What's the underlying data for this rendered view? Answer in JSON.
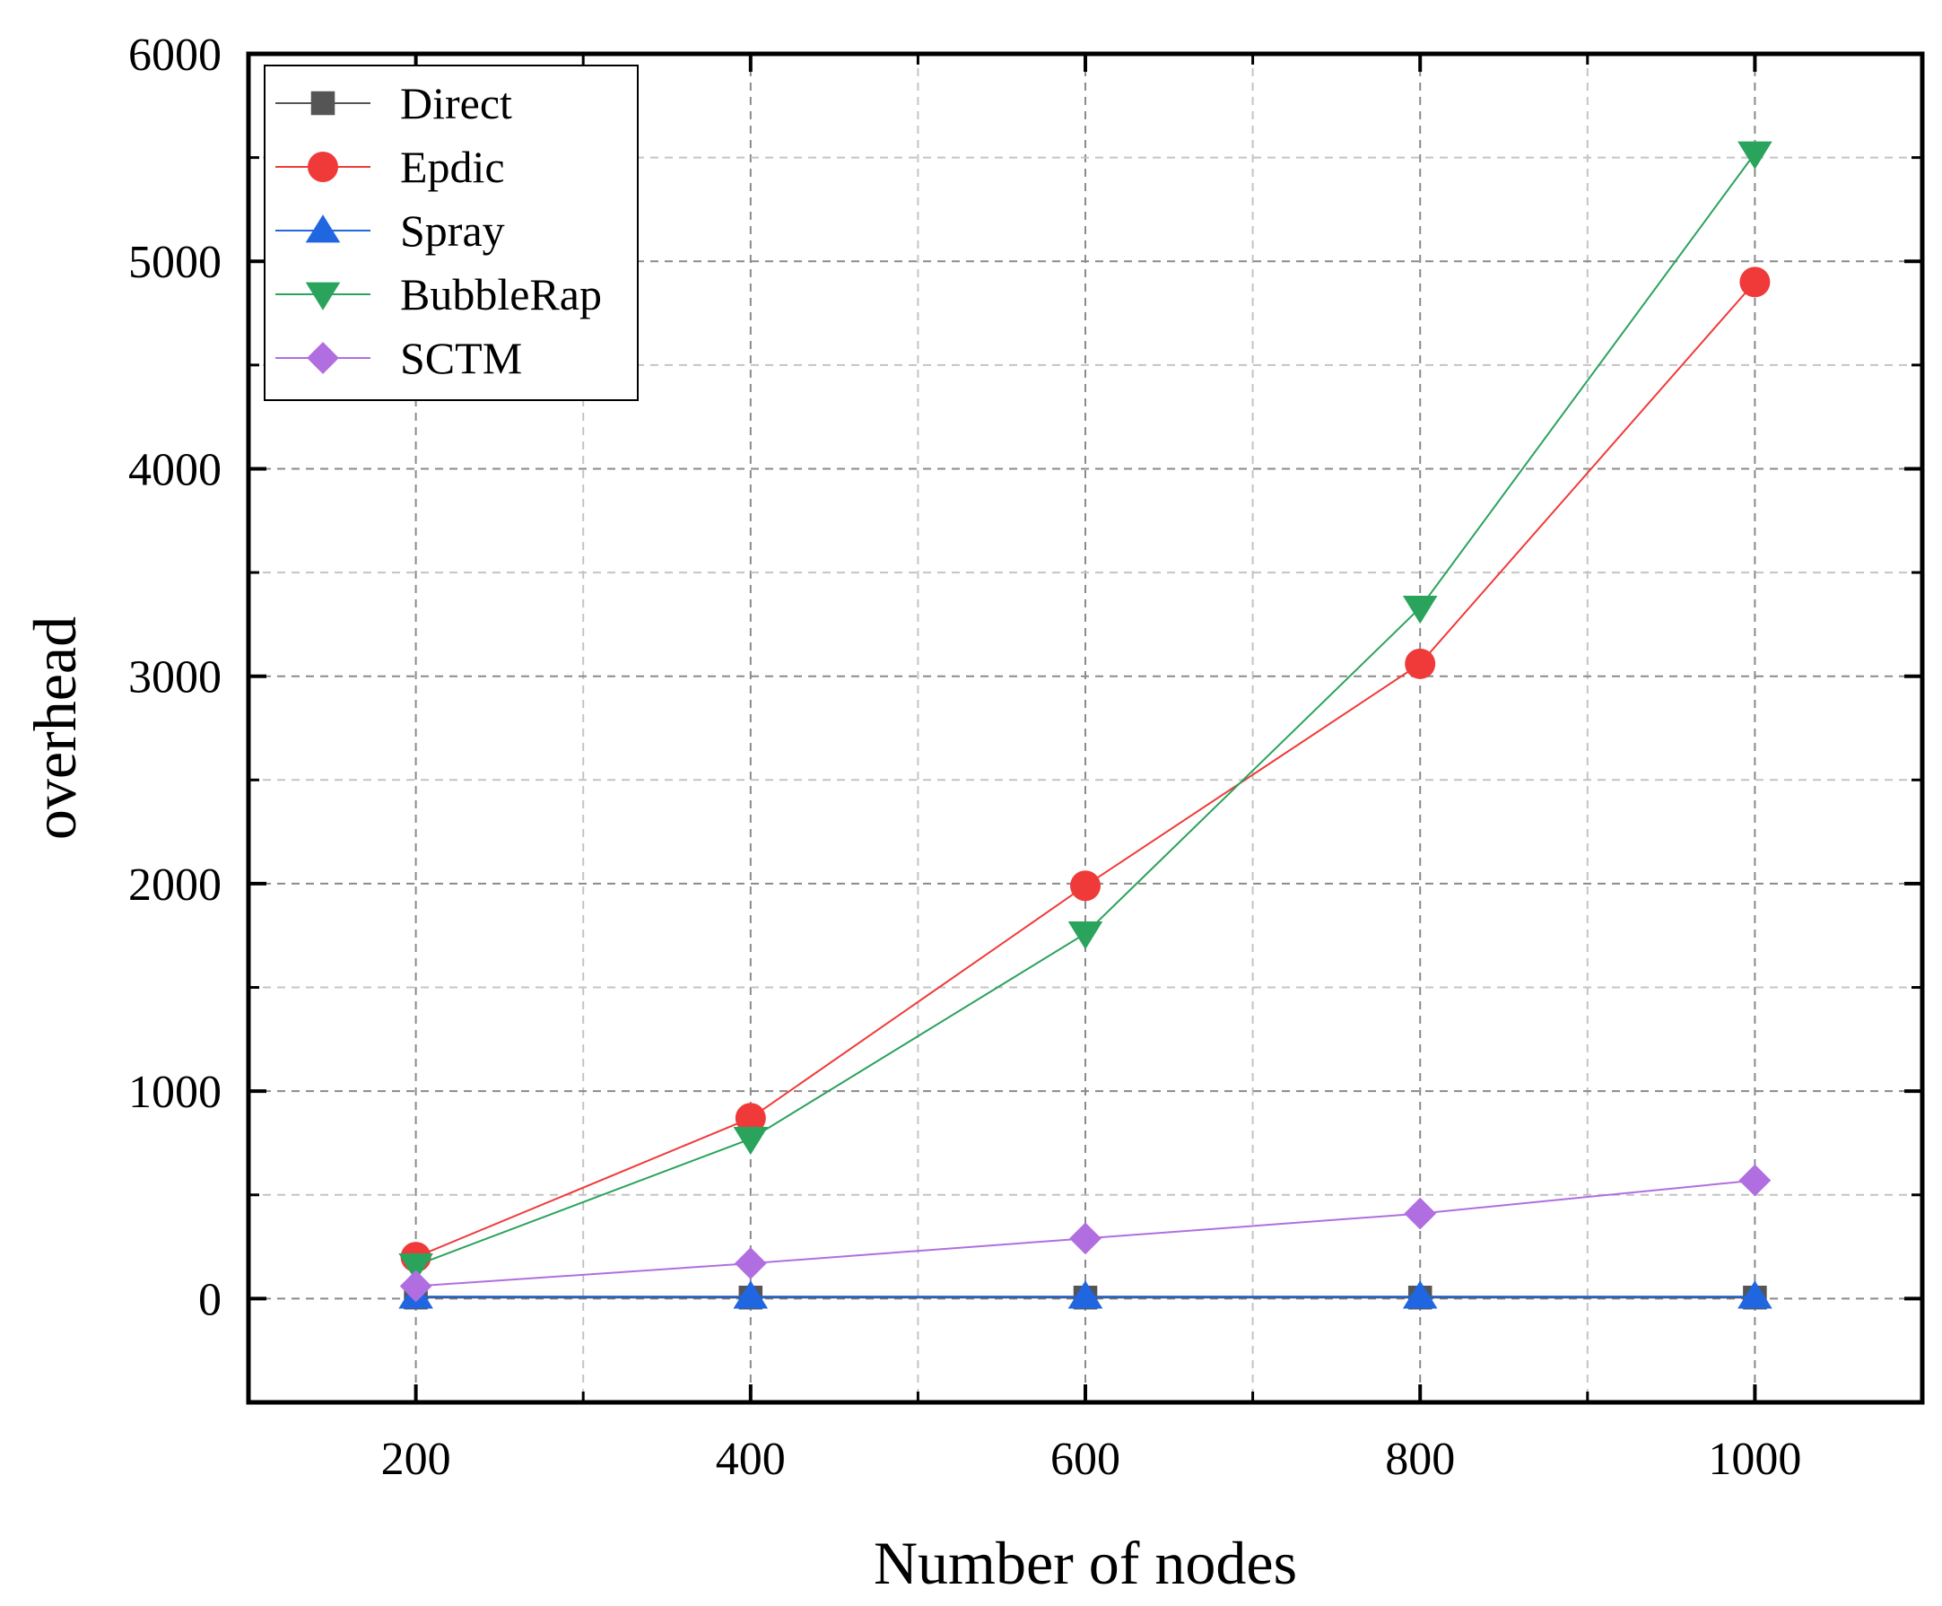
{
  "chart_data": {
    "type": "line",
    "title": "",
    "xlabel": "Number of nodes",
    "ylabel": "overhead",
    "xlim": [
      100,
      1100
    ],
    "ylim": [
      -500,
      6000
    ],
    "x_ticks": [
      200,
      400,
      600,
      800,
      1000
    ],
    "y_ticks": [
      0,
      1000,
      2000,
      3000,
      4000,
      5000,
      6000
    ],
    "x_tick_labels": [
      "200",
      "400",
      "600",
      "800",
      "1000"
    ],
    "y_tick_labels": [
      "0",
      "1000",
      "2000",
      "3000",
      "4000",
      "5000",
      "6000"
    ],
    "x_minor_ticks": [
      300,
      500,
      700,
      900
    ],
    "y_minor_ticks": [
      -500,
      500,
      1500,
      2500,
      3500,
      4500,
      5500
    ],
    "grid": true,
    "legend_position": "top-left",
    "x": [
      200,
      400,
      600,
      800,
      1000
    ],
    "series": [
      {
        "name": "Direct",
        "marker": "square",
        "color": "#555555",
        "values": [
          5,
          5,
          5,
          5,
          5
        ]
      },
      {
        "name": "Epdic",
        "marker": "circle",
        "color": "#f03a3a",
        "values": [
          200,
          870,
          1990,
          3060,
          4900
        ]
      },
      {
        "name": "Spray",
        "marker": "triangle-up",
        "color": "#1f66e0",
        "values": [
          10,
          10,
          10,
          10,
          10
        ]
      },
      {
        "name": "BubbleRap",
        "marker": "triangle-down",
        "color": "#2aa35c",
        "values": [
          160,
          770,
          1760,
          3330,
          5520
        ]
      },
      {
        "name": "SCTM",
        "marker": "diamond",
        "color": "#b06ee0",
        "values": [
          60,
          170,
          290,
          410,
          570
        ]
      }
    ]
  }
}
